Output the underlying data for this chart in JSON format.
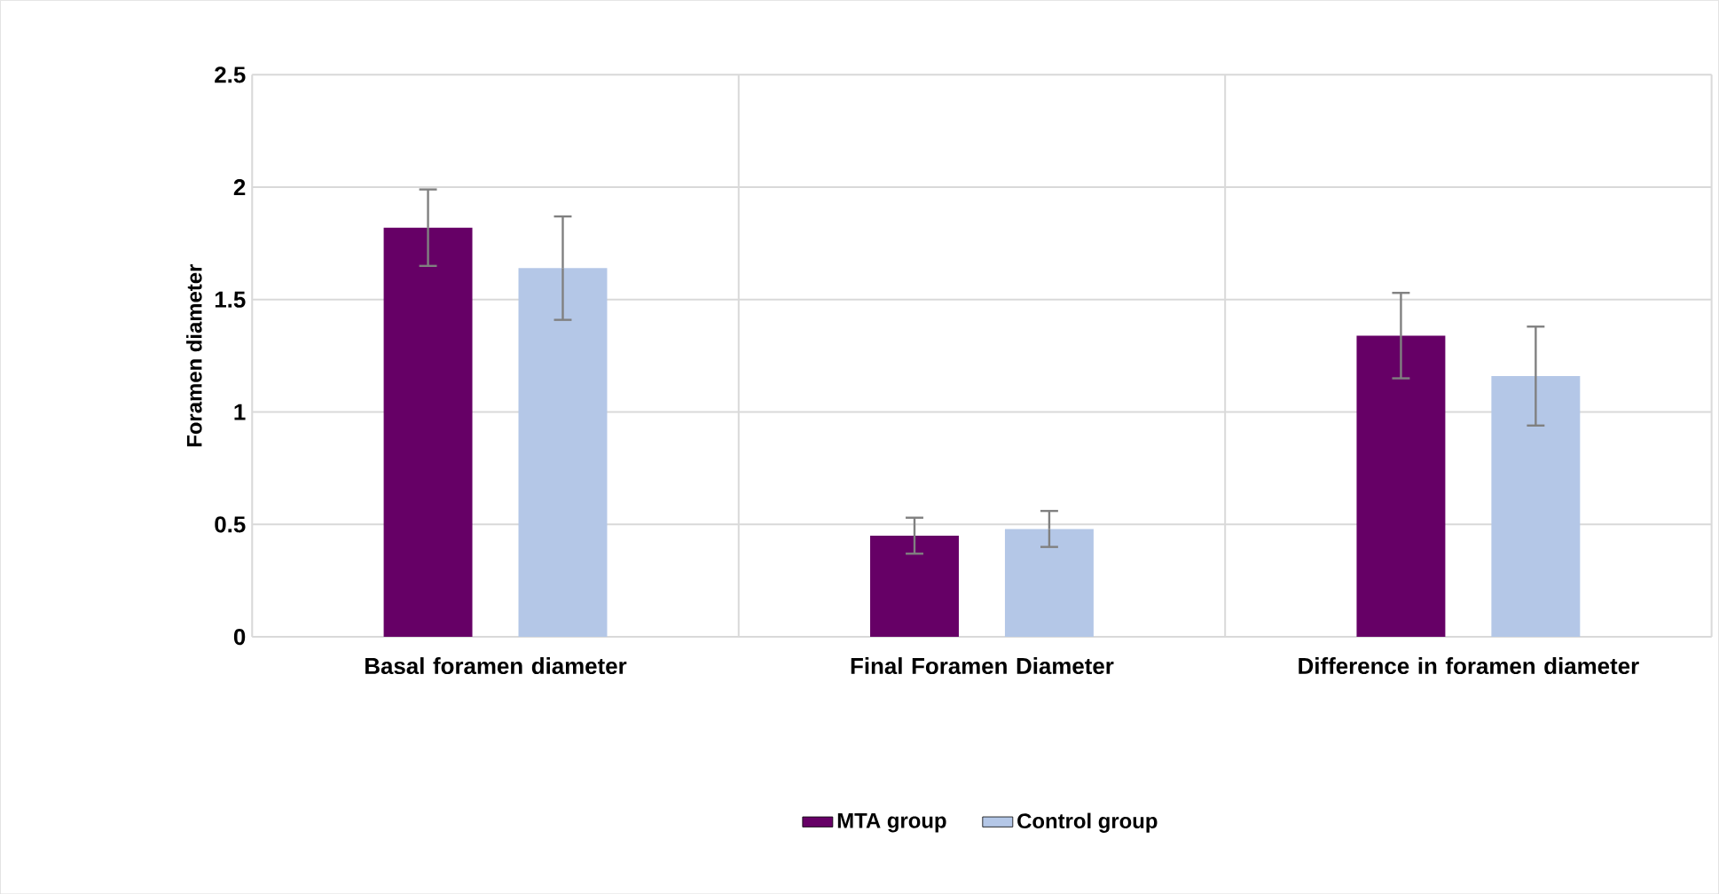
{
  "chart_data": {
    "type": "bar",
    "ylabel": "Foramen diameter",
    "categories": [
      "Basal foramen diameter",
      "Final Foramen Diameter",
      "Difference in foramen diameter"
    ],
    "series": [
      {
        "name": "MTA group",
        "color": "#660066",
        "values": [
          1.82,
          0.45,
          1.34
        ],
        "errors": [
          0.17,
          0.08,
          0.19
        ]
      },
      {
        "name": "Control group",
        "color": "#b4c7e7",
        "values": [
          1.64,
          0.48,
          1.16
        ],
        "errors": [
          0.23,
          0.08,
          0.22
        ]
      }
    ],
    "ylim": [
      0,
      2.5
    ],
    "yticks": [
      0,
      0.5,
      1,
      1.5,
      2,
      2.5
    ],
    "grid": true,
    "legend": "bottom"
  }
}
